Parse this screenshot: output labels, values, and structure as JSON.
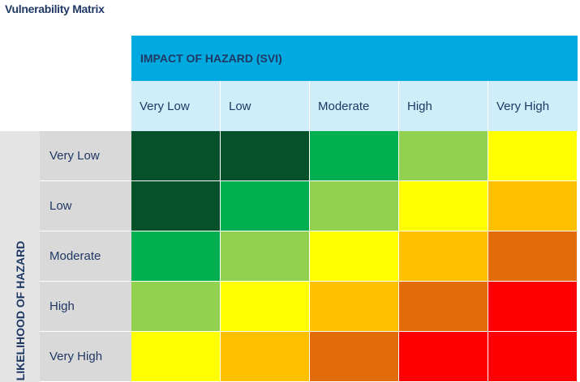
{
  "title": "Vulnerability Matrix",
  "impact_header": "IMPACT OF HAZARD (SVI)",
  "impact_levels": [
    "Very Low",
    "Low",
    "Moderate",
    "High",
    "Very High"
  ],
  "likelihood_header": "LIKELIHOOD OF HAZARD",
  "likelihood_levels": [
    "Very Low",
    "Low",
    "Moderate",
    "High",
    "Very High"
  ],
  "colors": {
    "dark_green": "#07512a",
    "green": "#00b050",
    "light_green": "#92d050",
    "yellow": "#ffff00",
    "amber": "#ffc000",
    "orange": "#e36c0a",
    "red": "#ff0000"
  },
  "matrix": [
    [
      "dark_green",
      "dark_green",
      "green",
      "light_green",
      "yellow"
    ],
    [
      "dark_green",
      "green",
      "light_green",
      "yellow",
      "amber"
    ],
    [
      "green",
      "light_green",
      "yellow",
      "amber",
      "orange"
    ],
    [
      "light_green",
      "yellow",
      "amber",
      "orange",
      "red"
    ],
    [
      "yellow",
      "amber",
      "orange",
      "red",
      "red"
    ]
  ]
}
